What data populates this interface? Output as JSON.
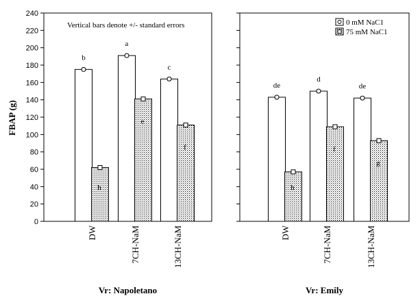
{
  "chart_data": {
    "type": "bar",
    "ylabel": "FBAP (g)",
    "ylim": [
      0,
      240
    ],
    "y_ticks": [
      "0",
      "20",
      "40",
      "60",
      "80",
      "100",
      "120",
      "140",
      "160",
      "180",
      "200",
      "220",
      "240"
    ],
    "categories": [
      "DW",
      "7CH-NaM",
      "13CH-NaM"
    ],
    "note": "Vertical bars denote +/- standard errors",
    "legend": {
      "position": "top-right",
      "entries": [
        {
          "name": "0  mM NaC1",
          "pattern": "open"
        },
        {
          "name": "75  mM NaC1",
          "pattern": "dotted"
        }
      ]
    },
    "panels": [
      {
        "title": "Vr: Napoletano",
        "series": [
          {
            "name": "0  mM NaC1",
            "values": [
              175,
              191,
              164
            ],
            "errors": [
              1.5,
              1.5,
              1.5
            ],
            "letters": [
              "b",
              "a",
              "c"
            ]
          },
          {
            "name": "75  mM NaC1",
            "values": [
              62,
              141,
              111
            ],
            "errors": [
              1.5,
              1.5,
              1.5
            ],
            "letters": [
              "h",
              "e",
              "f"
            ]
          }
        ]
      },
      {
        "title": "Vr: Emily",
        "series": [
          {
            "name": "0  mM NaC1",
            "values": [
              143,
              150,
              142
            ],
            "errors": [
              1.5,
              1.5,
              1.5
            ],
            "letters": [
              "de",
              "d",
              "de"
            ]
          },
          {
            "name": "75  mM NaC1",
            "values": [
              57,
              109,
              93
            ],
            "errors": [
              1.5,
              1.5,
              1.5
            ],
            "letters": [
              "h",
              "f",
              "g"
            ]
          }
        ]
      }
    ]
  }
}
